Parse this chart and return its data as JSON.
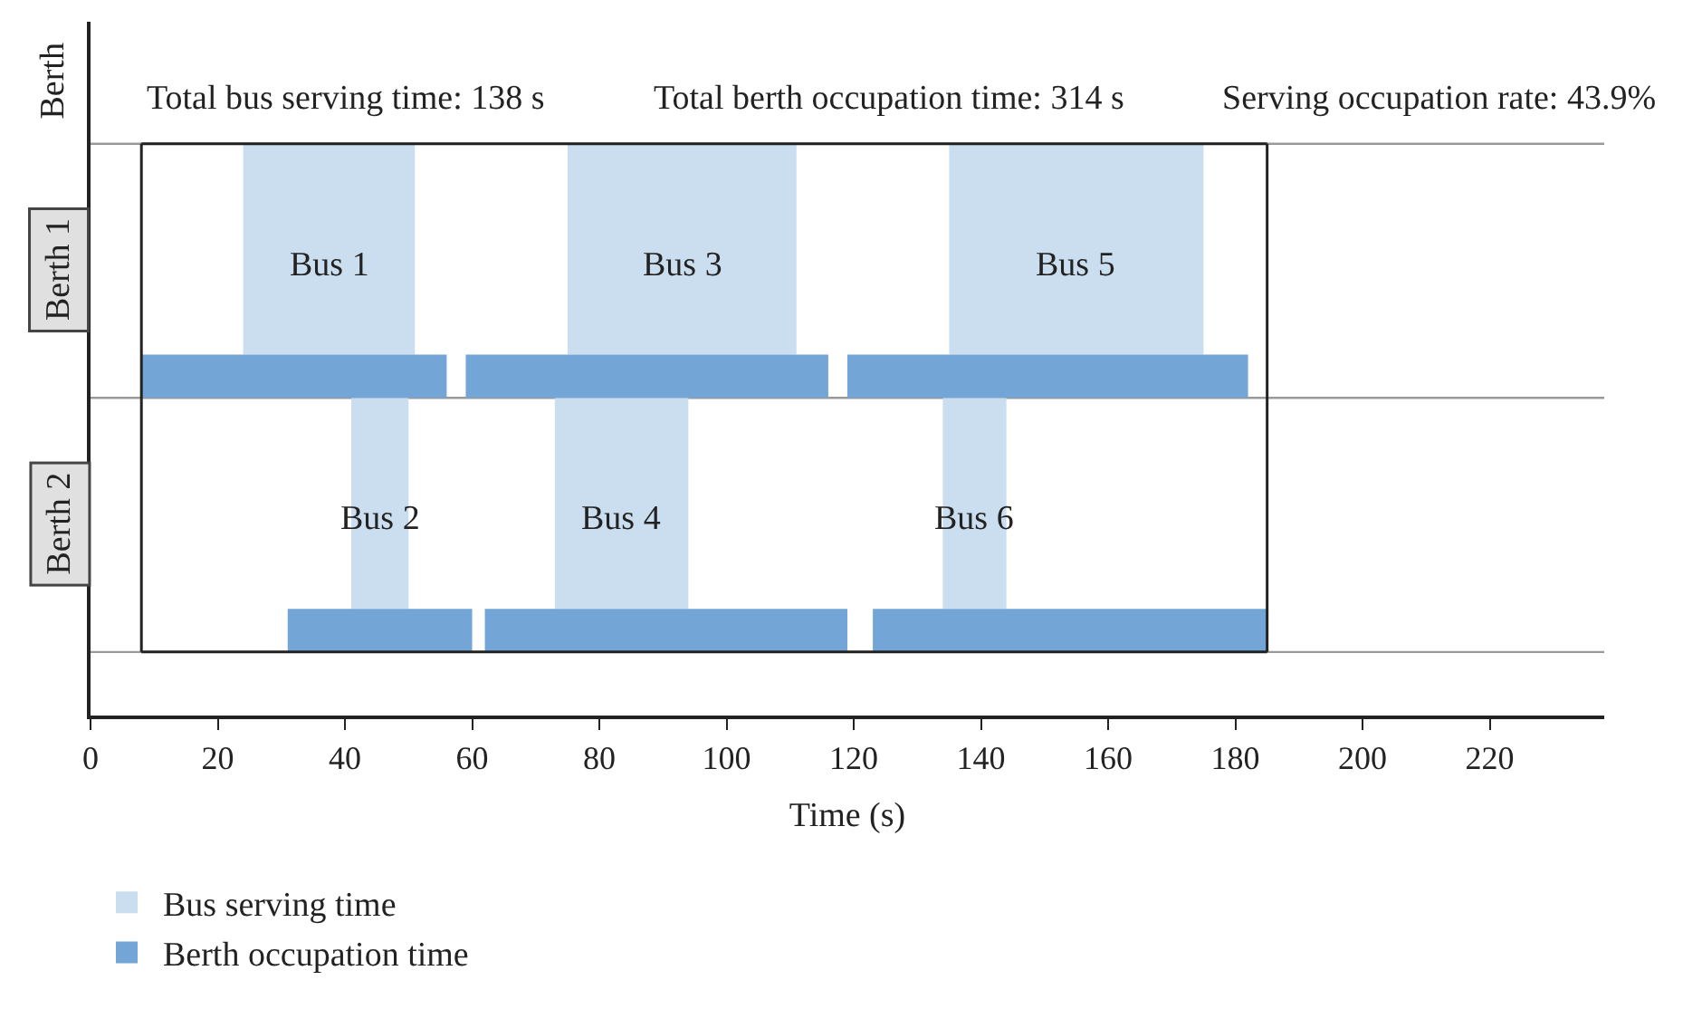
{
  "chart_data": {
    "type": "bar",
    "orientation": "horizontal",
    "categories": [
      "Berth 1",
      "Berth 2"
    ],
    "xlabel": "Time (s)",
    "ylabel": "Berth",
    "xlim": [
      0,
      238
    ],
    "xticks": [
      0,
      20,
      40,
      60,
      80,
      100,
      120,
      140,
      160,
      180,
      200,
      220
    ],
    "series": [
      {
        "name": "Bus serving time",
        "color": "#cadeef",
        "base": [
          24,
          41
        ],
        "values": [
          27,
          9
        ],
        "value_labels": [
          "Bus 1",
          "Bus 2"
        ]
      },
      {
        "color": "#cadeef",
        "base": [
          75,
          73
        ],
        "values": [
          36,
          21
        ],
        "value_labels": [
          "Bus 3",
          "Bus 4"
        ]
      },
      {
        "color": "#cadeef",
        "base": [
          135,
          134
        ],
        "values": [
          40,
          10
        ],
        "value_labels": [
          "Bus 5",
          "Bus 6"
        ]
      },
      {
        "name": "Berth occupation time",
        "color": "#73a5d6",
        "base": [
          8,
          31
        ],
        "values": [
          48,
          29
        ]
      },
      {
        "color": "#73a5d6",
        "base": [
          59,
          62
        ],
        "values": [
          57,
          57
        ]
      },
      {
        "color": "#73a5d6",
        "base": [
          119,
          123
        ],
        "values": [
          63,
          62
        ]
      }
    ],
    "ref_lines": [
      {
        "axis": "x",
        "value": 8,
        "color": "#222222"
      },
      {
        "axis": "x",
        "value": 185,
        "color": "#222222"
      }
    ],
    "annotations": [
      "Total bus serving time: 138 s",
      "Total berth occupation time: 314 s",
      "Serving occupation rate: 43.9%"
    ],
    "legend": "bottom left",
    "grid": false
  }
}
